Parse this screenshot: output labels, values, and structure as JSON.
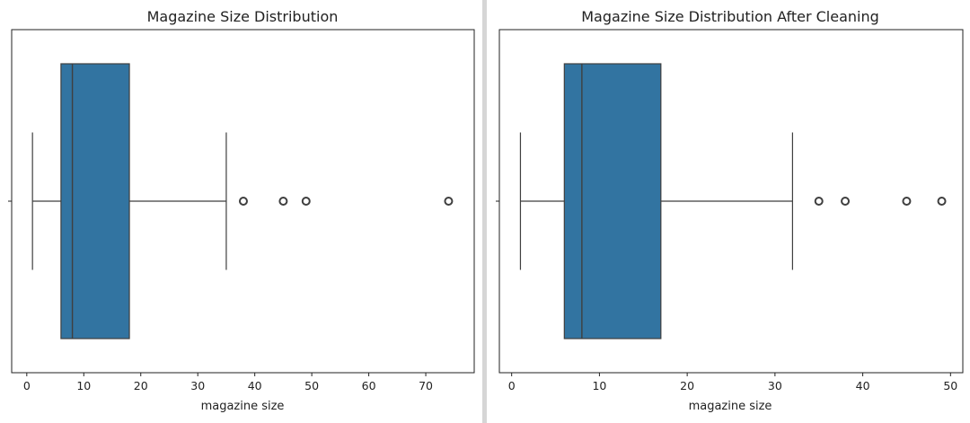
{
  "chart_data": [
    {
      "type": "boxplot",
      "title": "Magazine Size Distribution",
      "xlabel": "magazine size",
      "ylabel": "",
      "orientation": "horizontal",
      "xlim": [
        -2.65,
        78.5
      ],
      "xticks": [
        0,
        10,
        20,
        30,
        40,
        50,
        60,
        70
      ],
      "grid": false,
      "color": "#3274a1",
      "box": {
        "whisker_low": 1,
        "q1": 6,
        "median": 8,
        "q3": 18,
        "whisker_high": 35
      },
      "outliers": [
        38,
        45,
        49,
        74
      ]
    },
    {
      "type": "boxplot",
      "title": "Magazine Size Distribution After Cleaning",
      "xlabel": "magazine size",
      "ylabel": "",
      "orientation": "horizontal",
      "xlim": [
        -1.4,
        51.4
      ],
      "xticks": [
        0,
        10,
        20,
        30,
        40,
        50
      ],
      "grid": false,
      "color": "#3274a1",
      "box": {
        "whisker_low": 1,
        "q1": 6,
        "median": 8,
        "q3": 17,
        "whisker_high": 32
      },
      "outliers": [
        35,
        38,
        45,
        49
      ]
    }
  ]
}
